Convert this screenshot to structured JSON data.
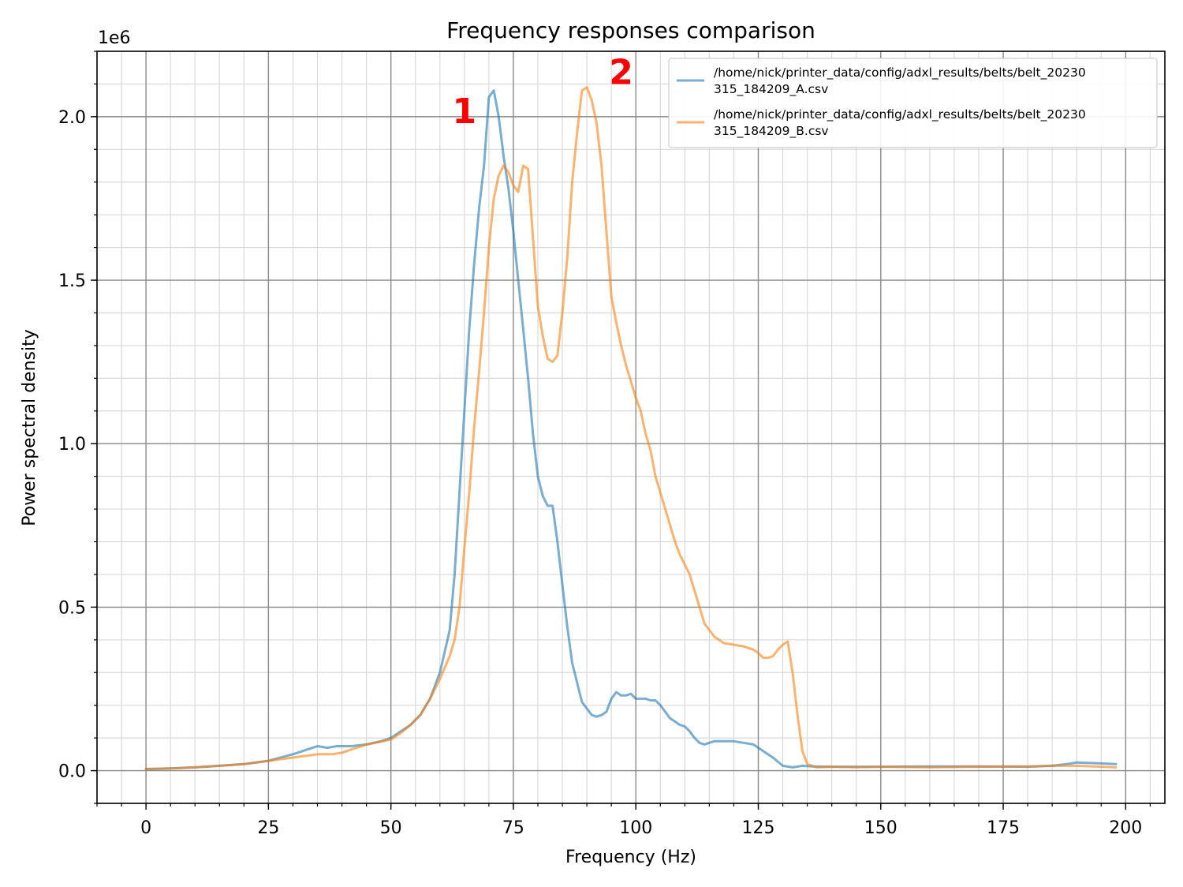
{
  "chart_data": {
    "type": "line",
    "title": "Frequency responses comparison",
    "xlabel": "Frequency (Hz)",
    "ylabel": "Power spectral density",
    "y_offset_text": "1e6",
    "xlim": [
      -10,
      208
    ],
    "ylim": [
      -0.1,
      2.2
    ],
    "x_scale": 1,
    "y_scale": 1000000,
    "x_ticks": [
      0,
      25,
      50,
      75,
      100,
      125,
      150,
      175,
      200
    ],
    "x_tick_labels": [
      "0",
      "25",
      "50",
      "75",
      "100",
      "125",
      "150",
      "175",
      "200"
    ],
    "y_ticks": [
      0.0,
      0.5,
      1.0,
      1.5,
      2.0
    ],
    "y_tick_labels": [
      "0.0",
      "0.5",
      "1.0",
      "1.5",
      "2.0"
    ],
    "grid": "major and minor",
    "legend_position": "top-right",
    "series": [
      {
        "name": "/home/nick/printer_data/config/adxl_results/belts/belt_20230315_184209_A.csv",
        "legend_lines": [
          "/home/nick/printer_data/config/adxl_results/belts/belt_20230",
          "315_184209_A.csv"
        ],
        "color": "#1f77b4",
        "x": [
          0,
          5,
          10,
          15,
          20,
          25,
          30,
          33,
          35,
          37,
          39,
          42,
          45,
          48,
          50,
          52,
          54,
          56,
          58,
          60,
          62,
          63,
          64,
          65,
          66,
          67,
          68,
          69,
          70,
          71,
          72,
          73,
          74,
          75,
          76,
          77,
          78,
          79,
          80,
          81,
          82,
          83,
          84,
          85,
          86,
          87,
          88,
          89,
          90,
          91,
          92,
          93,
          94,
          95,
          96,
          97,
          98,
          99,
          100,
          101,
          102,
          103,
          104,
          105,
          106,
          107,
          108,
          109,
          110,
          111,
          112,
          113,
          114,
          115,
          116,
          118,
          120,
          122,
          124,
          126,
          128,
          130,
          132,
          134,
          136,
          140,
          145,
          150,
          160,
          170,
          180,
          185,
          188,
          190,
          195,
          198
        ],
        "y": [
          0.005,
          0.007,
          0.01,
          0.015,
          0.02,
          0.03,
          0.05,
          0.065,
          0.075,
          0.07,
          0.075,
          0.075,
          0.08,
          0.09,
          0.1,
          0.12,
          0.14,
          0.17,
          0.22,
          0.3,
          0.43,
          0.6,
          0.85,
          1.1,
          1.35,
          1.55,
          1.72,
          1.85,
          2.06,
          2.08,
          2.0,
          1.88,
          1.78,
          1.65,
          1.5,
          1.35,
          1.2,
          1.03,
          0.9,
          0.84,
          0.81,
          0.81,
          0.7,
          0.57,
          0.44,
          0.33,
          0.27,
          0.21,
          0.19,
          0.17,
          0.165,
          0.17,
          0.18,
          0.22,
          0.24,
          0.23,
          0.23,
          0.235,
          0.22,
          0.22,
          0.22,
          0.215,
          0.215,
          0.2,
          0.18,
          0.16,
          0.15,
          0.14,
          0.135,
          0.12,
          0.1,
          0.085,
          0.08,
          0.085,
          0.09,
          0.09,
          0.09,
          0.085,
          0.08,
          0.06,
          0.04,
          0.015,
          0.01,
          0.015,
          0.013,
          0.012,
          0.012,
          0.012,
          0.013,
          0.013,
          0.012,
          0.015,
          0.02,
          0.025,
          0.022,
          0.02
        ]
      },
      {
        "name": "/home/nick/printer_data/config/adxl_results/belts/belt_20230315_184209_B.csv",
        "legend_lines": [
          "/home/nick/printer_data/config/adxl_results/belts/belt_20230",
          "315_184209_B.csv"
        ],
        "color": "#ff7f0e",
        "x": [
          0,
          5,
          10,
          15,
          20,
          25,
          30,
          35,
          38,
          40,
          42,
          45,
          50,
          52,
          54,
          56,
          58,
          60,
          62,
          63,
          64,
          65,
          66,
          67,
          68,
          69,
          70,
          71,
          72,
          73,
          74,
          75,
          76,
          77,
          78,
          79,
          80,
          81,
          82,
          83,
          84,
          85,
          86,
          87,
          88,
          89,
          90,
          91,
          92,
          93,
          94,
          95,
          96,
          97,
          98,
          99,
          100,
          101,
          102,
          103,
          104,
          105,
          106,
          107,
          108,
          109,
          110,
          111,
          112,
          113,
          114,
          115,
          116,
          117,
          118,
          120,
          122,
          124,
          125,
          126,
          127,
          128,
          129,
          130,
          131,
          132,
          133,
          134,
          135,
          137,
          140,
          145,
          150,
          160,
          170,
          180,
          185,
          190,
          195,
          198
        ],
        "y": [
          0.005,
          0.007,
          0.01,
          0.015,
          0.02,
          0.03,
          0.04,
          0.05,
          0.05,
          0.055,
          0.065,
          0.08,
          0.095,
          0.115,
          0.14,
          0.17,
          0.22,
          0.28,
          0.35,
          0.4,
          0.5,
          0.68,
          0.85,
          1.05,
          1.22,
          1.4,
          1.6,
          1.75,
          1.82,
          1.85,
          1.83,
          1.79,
          1.77,
          1.85,
          1.84,
          1.63,
          1.42,
          1.33,
          1.26,
          1.25,
          1.27,
          1.4,
          1.57,
          1.8,
          1.95,
          2.08,
          2.09,
          2.05,
          1.98,
          1.85,
          1.65,
          1.45,
          1.37,
          1.3,
          1.24,
          1.19,
          1.14,
          1.1,
          1.03,
          0.98,
          0.9,
          0.85,
          0.8,
          0.75,
          0.7,
          0.66,
          0.63,
          0.6,
          0.55,
          0.5,
          0.45,
          0.43,
          0.41,
          0.4,
          0.39,
          0.385,
          0.38,
          0.37,
          0.36,
          0.345,
          0.345,
          0.35,
          0.37,
          0.385,
          0.395,
          0.3,
          0.17,
          0.06,
          0.02,
          0.01,
          0.012,
          0.01,
          0.012,
          0.01,
          0.012,
          0.013,
          0.015,
          0.015,
          0.012,
          0.01
        ]
      }
    ]
  },
  "annotations": [
    {
      "text": "1",
      "x": 65,
      "y": 1.98,
      "color": "#ff0000"
    },
    {
      "text": "2",
      "x": 97,
      "y": 2.1,
      "color": "#ff0000"
    }
  ]
}
